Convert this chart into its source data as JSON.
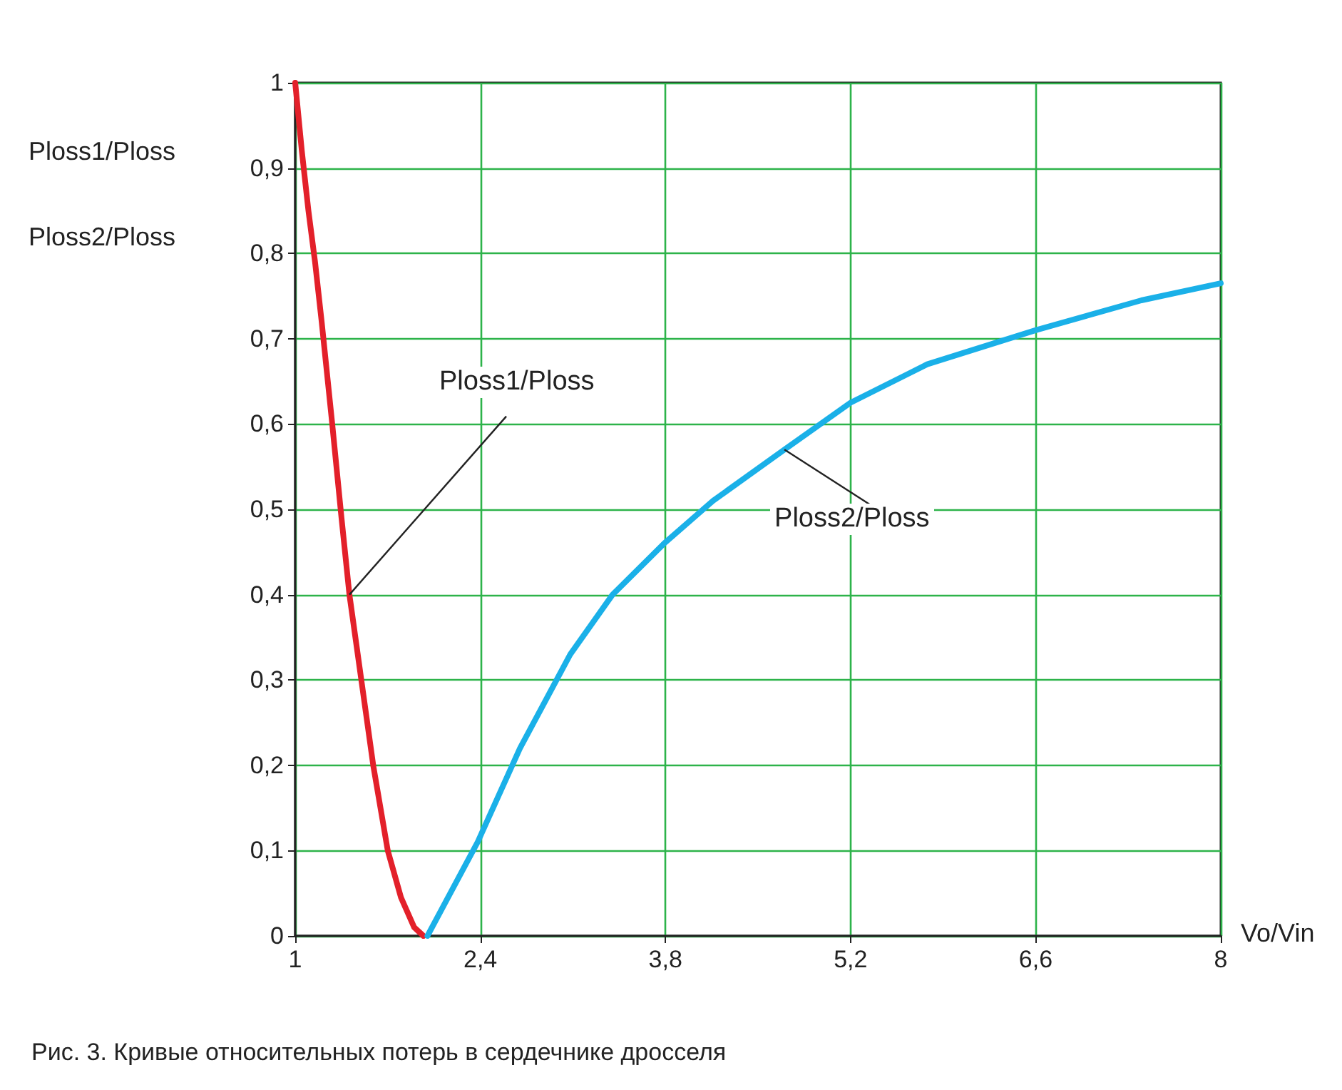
{
  "chart_data": {
    "type": "line",
    "xlabel": "Vo/Vin",
    "ylabel": "Ploss1/Ploss\nPloss2/Ploss",
    "annotations": [
      "Рис. 3. Кривые относительных потерь в сердечнике дросселя"
    ],
    "series": [
      {
        "name": "Ploss1/Ploss",
        "color": "#e3202a",
        "x": [
          1,
          1.05,
          1.1,
          1.15,
          1.2,
          1.28,
          1.35,
          1.41,
          1.5,
          1.59,
          1.7,
          1.8,
          1.9,
          1.97
        ],
        "values": [
          1,
          0.92,
          0.85,
          0.79,
          0.72,
          0.6,
          0.49,
          0.4,
          0.3,
          0.2,
          0.1,
          0.045,
          0.01,
          0
        ]
      },
      {
        "name": "Ploss2/Ploss",
        "color": "#1ab0e8",
        "x": [
          2,
          2.38,
          2.7,
          3.08,
          3.4,
          3.79,
          4.16,
          4.7,
          5.2,
          5.78,
          6.6,
          7.4,
          8
        ],
        "values": [
          0,
          0.11,
          0.22,
          0.33,
          0.4,
          0.46,
          0.51,
          0.57,
          0.625,
          0.67,
          0.71,
          0.745,
          0.765
        ]
      }
    ],
    "xlim": [
      1,
      8
    ],
    "xticks": [
      1,
      {
        "value": 2.4,
        "label": "2,4"
      },
      {
        "value": 3.8,
        "label": "3,8"
      },
      {
        "value": 5.2,
        "label": "5,2"
      },
      {
        "value": 6.6,
        "label": "6,6"
      },
      8
    ],
    "ylim": [
      0,
      1
    ],
    "yticks": [
      0,
      {
        "value": 0.1,
        "label": "0,1"
      },
      {
        "value": 0.2,
        "label": "0,2"
      },
      {
        "value": 0.3,
        "label": "0,3"
      },
      {
        "value": 0.4,
        "label": "0,4"
      },
      {
        "value": 0.5,
        "label": "0,5"
      },
      {
        "value": 0.6,
        "label": "0,6"
      },
      {
        "value": 0.7,
        "label": "0,7"
      },
      {
        "value": 0.8,
        "label": "0,8"
      },
      {
        "value": 0.9,
        "label": "0,9"
      },
      1
    ],
    "grid": true,
    "marker": "none",
    "line_style": "solid",
    "legend": false
  }
}
